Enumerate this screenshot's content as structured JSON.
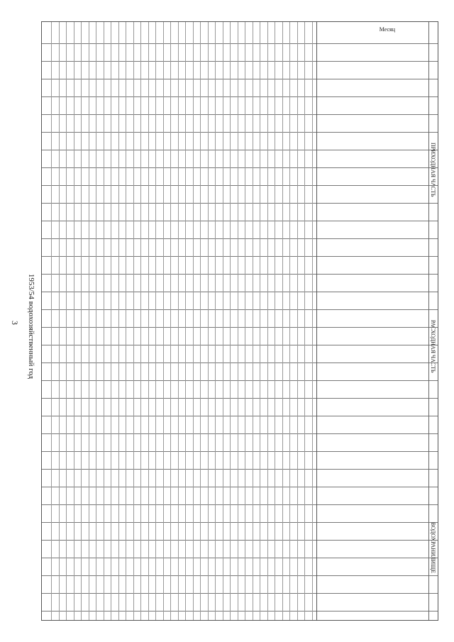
{
  "page": {
    "number": "3",
    "title": "1953/54 водохозяйственный год"
  },
  "table": {
    "sections": {
      "prihod": "ПРИХОДНАЯ ЧАСТЬ",
      "rashod": "РАСХОДНАЯ ЧАСТЬ",
      "vodokhr": "ВОДОХРАНИЛИЩЕ"
    },
    "month_header": "Месяц"
  }
}
